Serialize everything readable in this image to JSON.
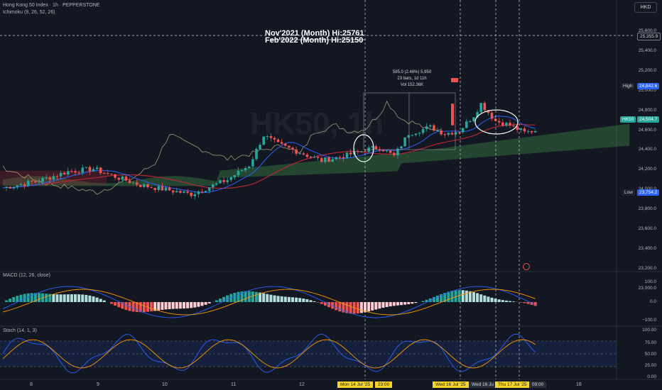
{
  "symbol_title": "Hong Kong 50 Index · 1h · PEPPERSTONE",
  "indicator_ichimoku": "Ichimoku (9, 26, 52, 26)",
  "indicator_macd": "MACD (12, 26, close)",
  "indicator_stoch": "Stoch (14, 1, 3)",
  "currency_button": "HKD",
  "watermark": "HK50, 1h",
  "annotation_line1": "Nov'2021 (Month) Hi:25761",
  "annotation_line2": "Feb'2022 (Month) Hi:25150",
  "measure_line1": "595.0 (2.46%) 5,950",
  "measure_line2": "23 bars, 1d 11h",
  "measure_line3": "Vol 152.36K",
  "price_axis": [
    "25,600.0",
    "25,400.0",
    "25,200.0",
    "25,000.0",
    "24,800.0",
    "24,600.0",
    "24,400.0",
    "24,200.0",
    "24,000.0",
    "23,800.0",
    "23,600.0",
    "23,400.0",
    "23,200.0",
    "23,000.0"
  ],
  "price_tags": {
    "level_line": "25,355.9",
    "high_label": "High",
    "high_value": "24,842.6",
    "symbol_tag": "HK50",
    "last_value": "24,504.7",
    "low_label": "Low",
    "low_value": "23,754.2"
  },
  "macd_axis": [
    "100.0",
    "0.0",
    "−100.0"
  ],
  "stoch_axis": [
    "100.00",
    "75.00",
    "50.00",
    "25.00",
    "0.00"
  ],
  "time_axis": [
    "8",
    "9",
    "10",
    "11",
    "12",
    "18"
  ],
  "time_tags": [
    "Mon 14 Jul '25",
    "23:00",
    "Wed 16 Jul '25",
    "Wed 16 Ju",
    "Thu 17 Jul '25",
    "09:00"
  ],
  "colors": {
    "bg": "#131722",
    "up": "#26a69a",
    "down": "#ef5350",
    "blue": "#2962ff",
    "orange": "#ff9800",
    "tenkan": "#2962ff",
    "kijun": "#b22833",
    "lagging": "#c9b98a"
  }
}
